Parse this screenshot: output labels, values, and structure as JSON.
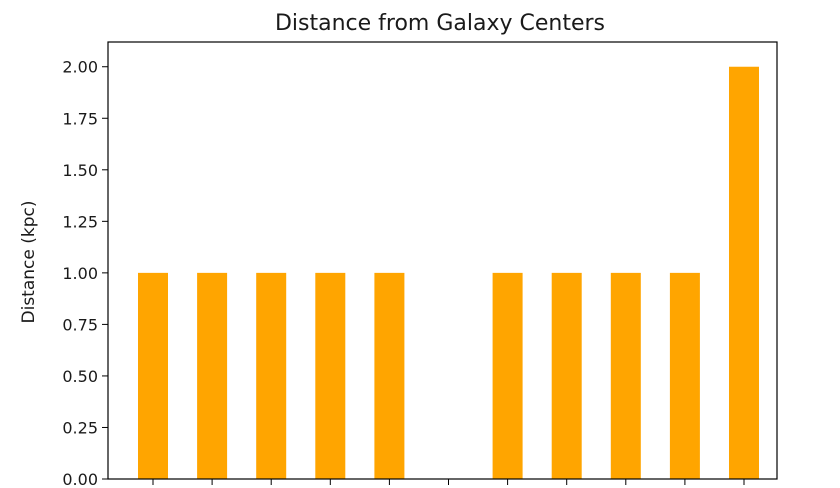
{
  "chart_data": {
    "type": "bar",
    "title": "Distance from Galaxy Centers",
    "xlabel": "",
    "ylabel": "Distance (kpc)",
    "categories": [
      "",
      "",
      "",
      "",
      "",
      "",
      "",
      "",
      "",
      "",
      ""
    ],
    "values": [
      1.0,
      1.0,
      1.0,
      1.0,
      1.0,
      0.0,
      1.0,
      1.0,
      1.0,
      1.0,
      2.0
    ],
    "ylim": [
      0.0,
      2.12
    ],
    "yticks": [
      "0.00",
      "0.25",
      "0.50",
      "0.75",
      "1.00",
      "1.25",
      "1.50",
      "1.75",
      "2.00"
    ],
    "ytick_values": [
      0,
      0.25,
      0.5,
      0.75,
      1.0,
      1.25,
      1.5,
      1.75,
      2.0
    ],
    "bar_color": "#ffa500",
    "grid": false,
    "legend": "none"
  }
}
